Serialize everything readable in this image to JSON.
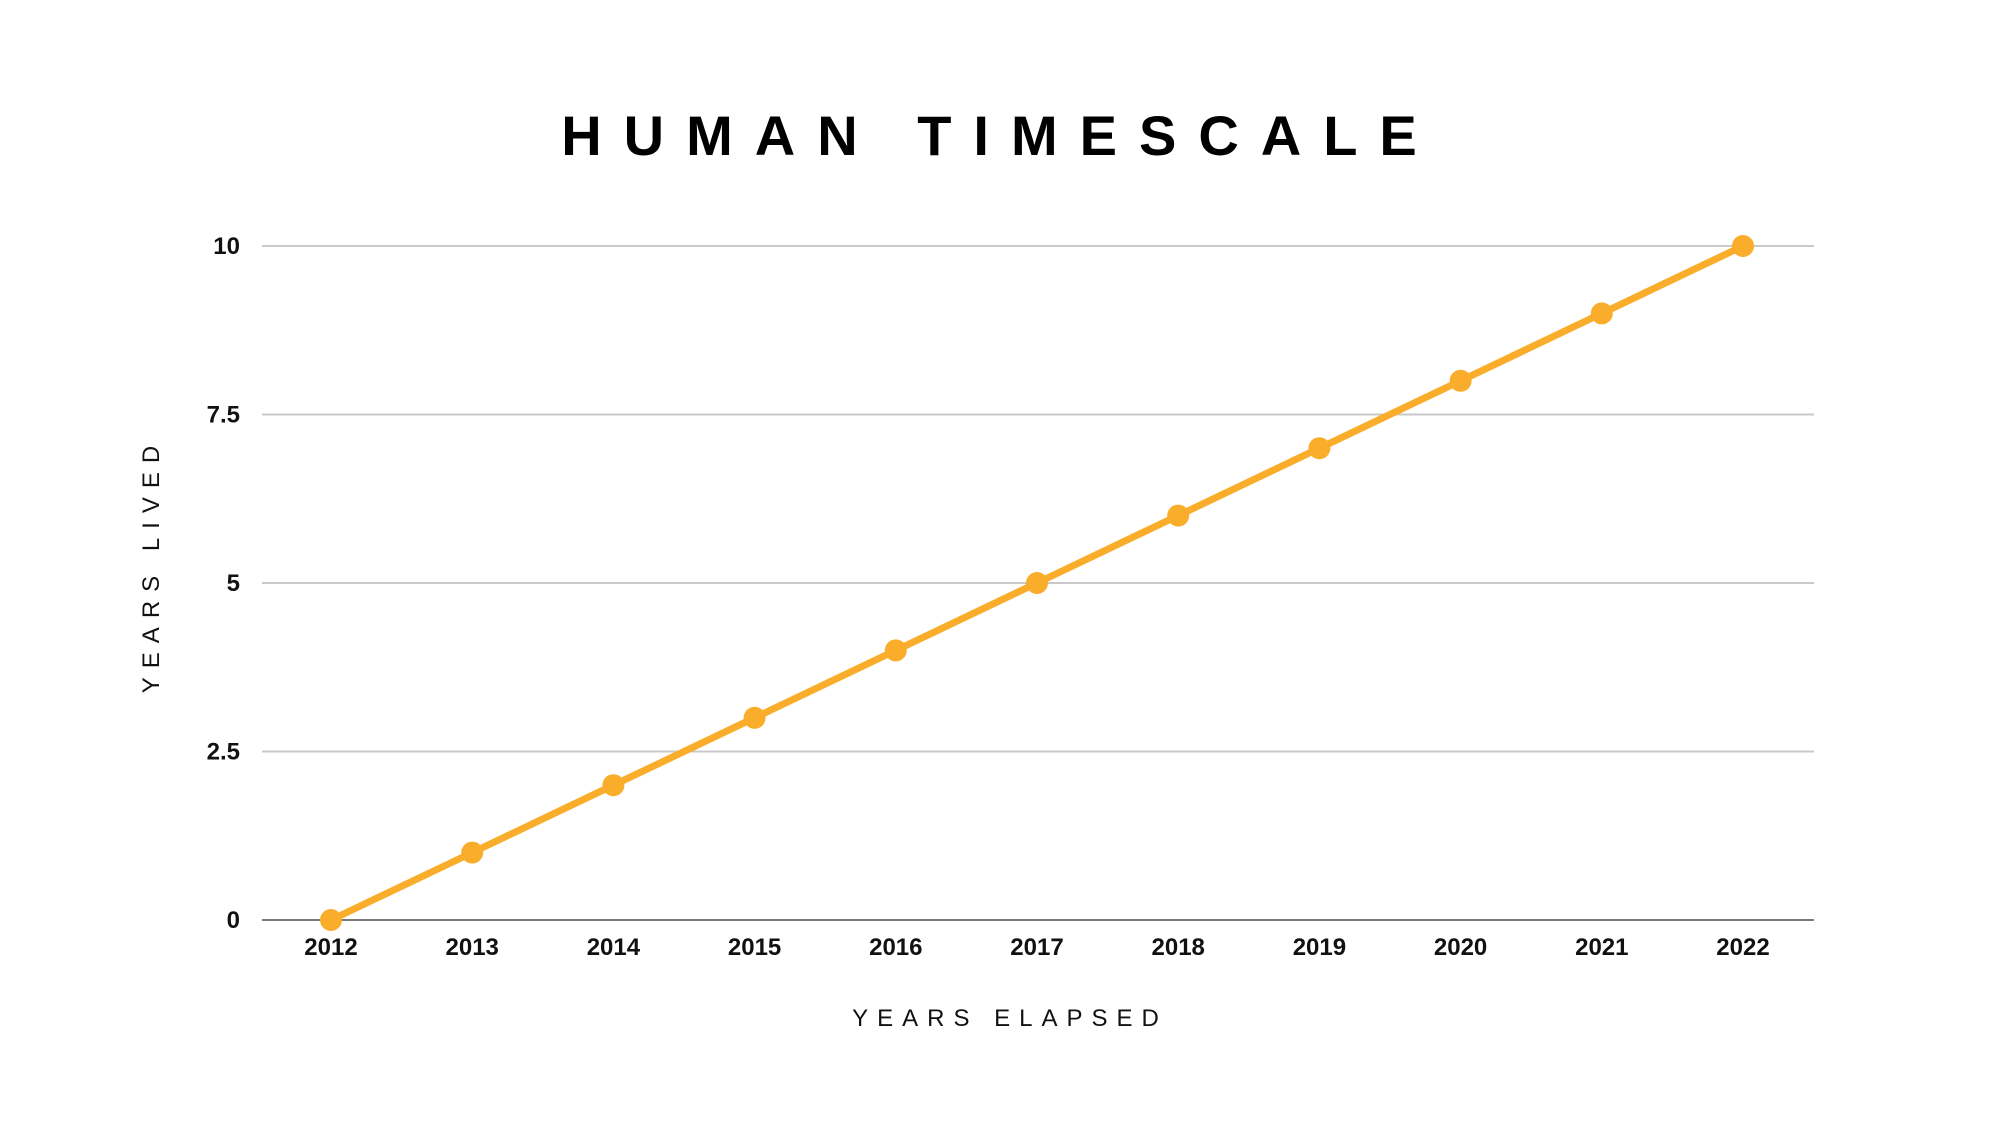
{
  "chart_data": {
    "type": "line",
    "title": "HUMAN TIMESCALE",
    "xlabel": "YEARS ELAPSED",
    "ylabel": "YEARS LIVED",
    "x": [
      "2012",
      "2013",
      "2014",
      "2015",
      "2016",
      "2017",
      "2018",
      "2019",
      "2020",
      "2021",
      "2022"
    ],
    "series": [
      {
        "values": [
          0,
          1,
          2,
          3,
          4,
          5,
          6,
          7,
          8,
          9,
          10
        ]
      }
    ],
    "yticks": [
      0,
      2.5,
      5,
      7.5,
      10
    ],
    "ytick_labels": [
      "0",
      "2.5",
      "5",
      "7.5",
      "10"
    ],
    "ylim": [
      0,
      10
    ],
    "grid": true,
    "legend": "none",
    "line_color": "#F9AD2A"
  }
}
